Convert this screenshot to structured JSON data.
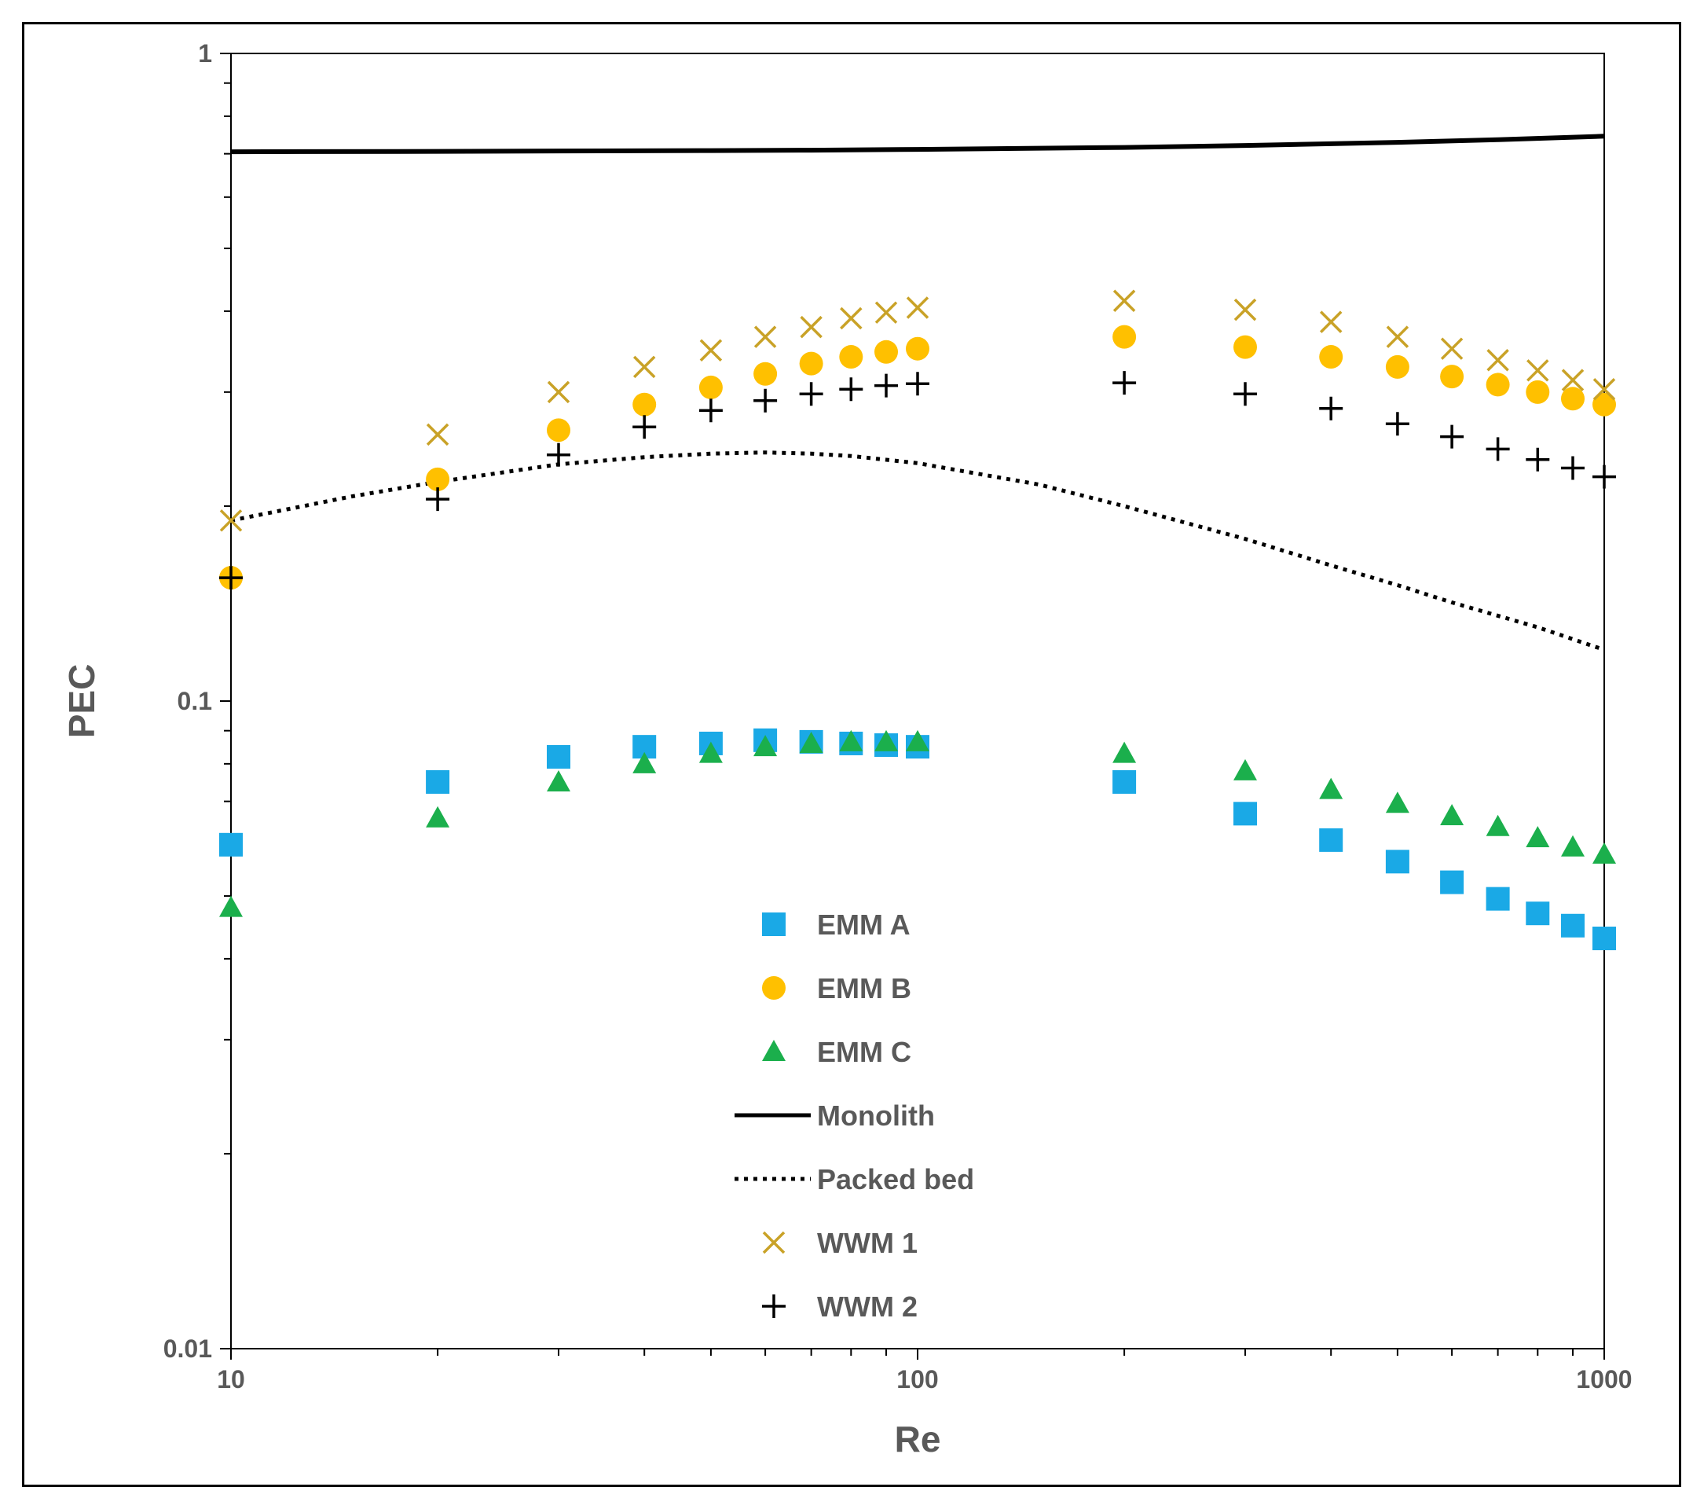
{
  "chart_data": {
    "type": "scatter",
    "title": "",
    "xlabel": "Re",
    "ylabel": "PEC",
    "xscale": "log",
    "yscale": "log",
    "xlim": [
      10,
      1000
    ],
    "ylim": [
      0.01,
      1
    ],
    "x_ticks": [
      "10",
      "100",
      "1000"
    ],
    "y_ticks": [
      "0.01",
      "0.1",
      "1"
    ],
    "legend_position": "center-bottom",
    "series": [
      {
        "name": "EMM A",
        "marker": "square",
        "color": "#1AA9E6",
        "x": [
          10,
          20,
          30,
          40,
          50,
          60,
          70,
          80,
          90,
          100,
          200,
          300,
          400,
          500,
          600,
          700,
          800,
          900,
          1000
        ],
        "y": [
          0.06,
          0.075,
          0.082,
          0.085,
          0.086,
          0.087,
          0.0865,
          0.086,
          0.0855,
          0.085,
          0.075,
          0.067,
          0.061,
          0.0565,
          0.0525,
          0.0495,
          0.047,
          0.045,
          0.043
        ]
      },
      {
        "name": "EMM B",
        "marker": "circle",
        "color": "#FFC000",
        "x": [
          10,
          20,
          30,
          40,
          50,
          60,
          70,
          80,
          90,
          100,
          200,
          300,
          400,
          500,
          600,
          700,
          800,
          900,
          1000
        ],
        "y": [
          0.155,
          0.22,
          0.262,
          0.287,
          0.305,
          0.32,
          0.332,
          0.34,
          0.346,
          0.35,
          0.365,
          0.352,
          0.34,
          0.328,
          0.317,
          0.308,
          0.3,
          0.293,
          0.287
        ]
      },
      {
        "name": "EMM C",
        "marker": "triangle",
        "color": "#1BAF4C",
        "x": [
          10,
          20,
          30,
          40,
          50,
          60,
          70,
          80,
          90,
          100,
          200,
          300,
          400,
          500,
          600,
          700,
          800,
          900,
          1000
        ],
        "y": [
          0.048,
          0.066,
          0.075,
          0.08,
          0.083,
          0.085,
          0.086,
          0.0865,
          0.0865,
          0.0865,
          0.083,
          0.078,
          0.073,
          0.0695,
          0.0665,
          0.064,
          0.0615,
          0.0595,
          0.058
        ]
      },
      {
        "name": "Monolith",
        "marker": "line-solid",
        "color": "#000000",
        "x": [
          10,
          20,
          30,
          50,
          70,
          100,
          200,
          300,
          500,
          700,
          1000
        ],
        "y": [
          0.705,
          0.706,
          0.707,
          0.708,
          0.709,
          0.711,
          0.716,
          0.721,
          0.729,
          0.736,
          0.745
        ]
      },
      {
        "name": "Packed bed",
        "marker": "line-dotted",
        "color": "#000000",
        "x": [
          10,
          15,
          20,
          30,
          40,
          50,
          60,
          70,
          80,
          100,
          150,
          200,
          300,
          400,
          500,
          600,
          800,
          1000
        ],
        "y": [
          0.19,
          0.207,
          0.218,
          0.232,
          0.238,
          0.241,
          0.242,
          0.241,
          0.239,
          0.233,
          0.216,
          0.2,
          0.178,
          0.162,
          0.151,
          0.142,
          0.13,
          0.12
        ]
      },
      {
        "name": "WWM 1",
        "marker": "x",
        "color": "#C9A227",
        "x": [
          10,
          20,
          30,
          40,
          50,
          60,
          70,
          80,
          90,
          100,
          200,
          300,
          400,
          500,
          600,
          700,
          800,
          900,
          1000
        ],
        "y": [
          0.19,
          0.258,
          0.3,
          0.328,
          0.348,
          0.365,
          0.378,
          0.39,
          0.398,
          0.405,
          0.415,
          0.402,
          0.385,
          0.365,
          0.35,
          0.336,
          0.324,
          0.313,
          0.303
        ]
      },
      {
        "name": "WWM 2",
        "marker": "plus",
        "color": "#000000",
        "x": [
          10,
          20,
          30,
          40,
          50,
          60,
          70,
          80,
          90,
          100,
          200,
          300,
          400,
          500,
          600,
          700,
          800,
          900,
          1000
        ],
        "y": [
          0.155,
          0.205,
          0.24,
          0.265,
          0.281,
          0.291,
          0.298,
          0.303,
          0.307,
          0.309,
          0.31,
          0.298,
          0.283,
          0.268,
          0.256,
          0.245,
          0.236,
          0.229,
          0.222
        ]
      }
    ]
  }
}
